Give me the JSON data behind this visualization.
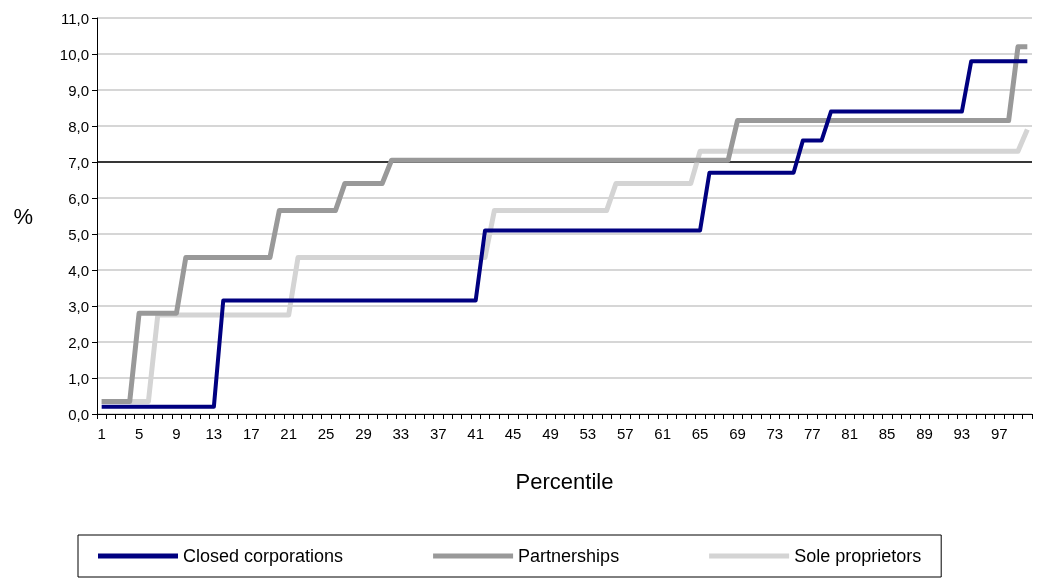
{
  "chart_data": {
    "type": "line",
    "xlabel": "Percentile",
    "ylabel": "%",
    "categories": [
      "1",
      null,
      null,
      null,
      "5",
      null,
      null,
      null,
      "9",
      null,
      null,
      null,
      "13",
      null,
      null,
      null,
      "17",
      null,
      null,
      null,
      "21",
      null,
      null,
      null,
      "25",
      null,
      null,
      null,
      "29",
      null,
      null,
      null,
      "33",
      null,
      null,
      null,
      "37",
      null,
      null,
      null,
      "41",
      null,
      null,
      null,
      "45",
      null,
      null,
      null,
      "49",
      null,
      null,
      null,
      "53",
      null,
      null,
      null,
      "57",
      null,
      null,
      null,
      "61",
      null,
      null,
      null,
      "65",
      null,
      null,
      null,
      "69",
      null,
      null,
      null,
      "73",
      null,
      null,
      null,
      "77",
      null,
      null,
      null,
      "81",
      null,
      null,
      null,
      "85",
      null,
      null,
      null,
      "89",
      null,
      null,
      null,
      "93",
      null,
      null,
      null,
      "97",
      null,
      null,
      null
    ],
    "series": [
      {
        "name": "Closed corporations",
        "color": "#000080",
        "values": [
          0.2,
          0.2,
          0.2,
          0.2,
          0.2,
          0.2,
          0.2,
          0.2,
          0.2,
          0.2,
          0.2,
          0.2,
          0.2,
          3.15,
          3.15,
          3.15,
          3.15,
          3.15,
          3.15,
          3.15,
          3.15,
          3.15,
          3.15,
          3.15,
          3.15,
          3.15,
          3.15,
          3.15,
          3.15,
          3.15,
          3.15,
          3.15,
          3.15,
          3.15,
          3.15,
          3.15,
          3.15,
          3.15,
          3.15,
          3.15,
          3.15,
          5.1,
          5.1,
          5.1,
          5.1,
          5.1,
          5.1,
          5.1,
          5.1,
          5.1,
          5.1,
          5.1,
          5.1,
          5.1,
          5.1,
          5.1,
          5.1,
          5.1,
          5.1,
          5.1,
          5.1,
          5.1,
          5.1,
          5.1,
          5.1,
          6.7,
          6.7,
          6.7,
          6.7,
          6.7,
          6.7,
          6.7,
          6.7,
          6.7,
          6.7,
          7.6,
          7.6,
          7.6,
          8.4,
          8.4,
          8.4,
          8.4,
          8.4,
          8.4,
          8.4,
          8.4,
          8.4,
          8.4,
          8.4,
          8.4,
          8.4,
          8.4,
          8.4,
          9.8,
          9.8,
          9.8,
          9.8,
          9.8,
          9.8,
          9.8
        ]
      },
      {
        "name": "Partnerships",
        "color": "#999999",
        "values": [
          0.35,
          0.35,
          0.35,
          0.35,
          2.8,
          2.8,
          2.8,
          2.8,
          2.8,
          4.35,
          4.35,
          4.35,
          4.35,
          4.35,
          4.35,
          4.35,
          4.35,
          4.35,
          4.35,
          5.65,
          5.65,
          5.65,
          5.65,
          5.65,
          5.65,
          5.65,
          6.4,
          6.4,
          6.4,
          6.4,
          6.4,
          7.05,
          7.05,
          7.05,
          7.05,
          7.05,
          7.05,
          7.05,
          7.05,
          7.05,
          7.05,
          7.05,
          7.05,
          7.05,
          7.05,
          7.05,
          7.05,
          7.05,
          7.05,
          7.05,
          7.05,
          7.05,
          7.05,
          7.05,
          7.05,
          7.05,
          7.05,
          7.05,
          7.05,
          7.05,
          7.05,
          7.05,
          7.05,
          7.05,
          7.05,
          7.05,
          7.05,
          7.05,
          8.15,
          8.15,
          8.15,
          8.15,
          8.15,
          8.15,
          8.15,
          8.15,
          8.15,
          8.15,
          8.15,
          8.15,
          8.15,
          8.15,
          8.15,
          8.15,
          8.15,
          8.15,
          8.15,
          8.15,
          8.15,
          8.15,
          8.15,
          8.15,
          8.15,
          8.15,
          8.15,
          8.15,
          8.15,
          8.15,
          10.2,
          10.2
        ]
      },
      {
        "name": "Sole proprietors",
        "color": "#d4d4d4",
        "values": [
          0.35,
          0.35,
          0.35,
          0.35,
          0.35,
          0.35,
          2.75,
          2.75,
          2.75,
          2.75,
          2.75,
          2.75,
          2.75,
          2.75,
          2.75,
          2.75,
          2.75,
          2.75,
          2.75,
          2.75,
          2.75,
          4.35,
          4.35,
          4.35,
          4.35,
          4.35,
          4.35,
          4.35,
          4.35,
          4.35,
          4.35,
          4.35,
          4.35,
          4.35,
          4.35,
          4.35,
          4.35,
          4.35,
          4.35,
          4.35,
          4.35,
          4.35,
          5.65,
          5.65,
          5.65,
          5.65,
          5.65,
          5.65,
          5.65,
          5.65,
          5.65,
          5.65,
          5.65,
          5.65,
          5.65,
          6.4,
          6.4,
          6.4,
          6.4,
          6.4,
          6.4,
          6.4,
          6.4,
          6.4,
          7.3,
          7.3,
          7.3,
          7.3,
          7.3,
          7.3,
          7.3,
          7.3,
          7.3,
          7.3,
          7.3,
          7.3,
          7.3,
          7.3,
          7.3,
          7.3,
          7.3,
          7.3,
          7.3,
          7.3,
          7.3,
          7.3,
          7.3,
          7.3,
          7.3,
          7.3,
          7.3,
          7.3,
          7.3,
          7.3,
          7.3,
          7.3,
          7.3,
          7.3,
          7.3,
          7.9
        ]
      }
    ],
    "ylim": [
      0,
      11
    ],
    "yticks": [
      {
        "value": 0,
        "label": "0,0"
      },
      {
        "value": 1,
        "label": "1,0"
      },
      {
        "value": 2,
        "label": "2,0"
      },
      {
        "value": 3,
        "label": "3,0"
      },
      {
        "value": 4,
        "label": "4,0"
      },
      {
        "value": 5,
        "label": "5,0"
      },
      {
        "value": 6,
        "label": "6,0"
      },
      {
        "value": 7,
        "label": "7,0"
      },
      {
        "value": 8,
        "label": "8,0"
      },
      {
        "value": 9,
        "label": "9,0"
      },
      {
        "value": 10,
        "label": "10,0"
      },
      {
        "value": 11,
        "label": "11,0"
      }
    ],
    "ref_lines": [
      {
        "axis": "y",
        "value": 7,
        "label": null,
        "color": "#000000"
      }
    ],
    "grid": "y",
    "legend": "bottom",
    "marker": "none"
  }
}
